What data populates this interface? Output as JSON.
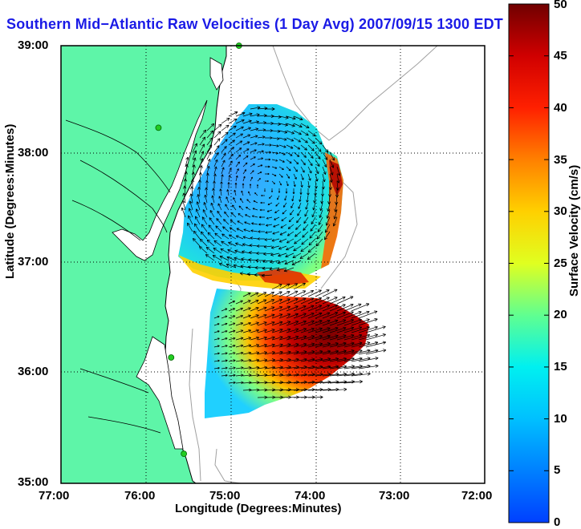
{
  "title": "Southern Mid−Atlantic Raw Velocities (1 Day Avg) 2007/09/15 1300 EDT",
  "axes": {
    "xlabel": "Longitude (Degrees:Minutes)",
    "ylabel": "Latitude (Degrees:Minutes)",
    "x_ticks": [
      "77:00",
      "76:00",
      "75:00",
      "74:00",
      "73:00",
      "72:00"
    ],
    "y_ticks": [
      "39:00",
      "38:00",
      "37:00",
      "36:00",
      "35:00"
    ]
  },
  "colorbar": {
    "label": "Surface Velocity (cm/s)",
    "ticks": [
      "50",
      "45",
      "40",
      "35",
      "30",
      "25",
      "20",
      "15",
      "10",
      "5",
      "0"
    ],
    "min": 0,
    "max": 50
  },
  "colors": {
    "land": "#5ef5a8",
    "coast": "#000000",
    "title": "#1a1ae6",
    "station": "#22cc22",
    "bathymetry": "#a0a0a0"
  },
  "chart_data": {
    "type": "vector-field map",
    "region": "Southern Mid-Atlantic Bight",
    "xlim": [
      -77,
      -72
    ],
    "ylim": [
      35,
      39
    ],
    "speed_units": "cm/s",
    "speed_range": [
      0,
      50
    ],
    "grid": true,
    "stations": [
      {
        "lon": -74.9,
        "lat": 39.0
      },
      {
        "lon": -75.85,
        "lat": 38.25
      },
      {
        "lon": -75.7,
        "lat": 36.15
      },
      {
        "lon": -75.55,
        "lat": 35.27
      }
    ]
  }
}
